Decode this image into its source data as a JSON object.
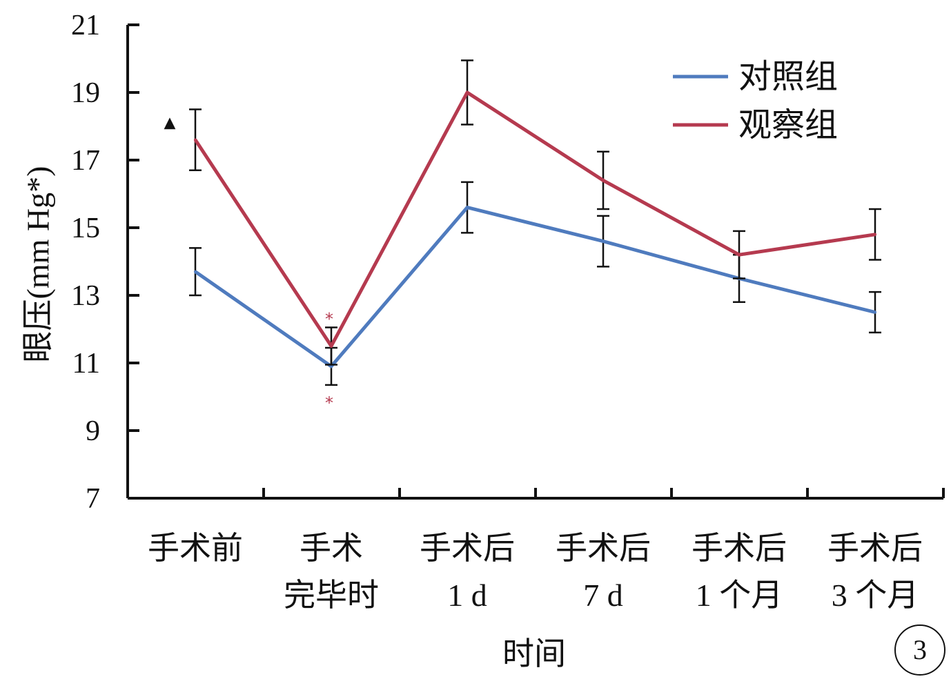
{
  "colors": {
    "control": "#4F7BBE",
    "observation": "#B53A4F",
    "axis": "#111111",
    "annotation_star": "#B53A4F"
  },
  "chart_data": {
    "type": "line",
    "xlabel": "时间",
    "ylabel": "眼压(mm Hg*)",
    "ylim": [
      7,
      21
    ],
    "yticks": [
      "7",
      "9",
      "11",
      "13",
      "15",
      "17",
      "19",
      "21"
    ],
    "categories": [
      {
        "line1": "手术前",
        "line2": ""
      },
      {
        "line1": "手术",
        "line2": "完毕时"
      },
      {
        "line1": "手术后",
        "line2": "1 d"
      },
      {
        "line1": "手术后",
        "line2": "7 d"
      },
      {
        "line1": "手术后",
        "line2": "1 个月"
      },
      {
        "line1": "手术后",
        "line2": "3 个月"
      }
    ],
    "series": [
      {
        "name": "对照组",
        "color_key": "control",
        "values": [
          13.7,
          10.9,
          15.6,
          14.6,
          13.5,
          12.5
        ],
        "errors": [
          0.7,
          0.55,
          0.75,
          0.75,
          0.7,
          0.6
        ]
      },
      {
        "name": "观察组",
        "color_key": "observation",
        "values": [
          17.6,
          11.5,
          19.0,
          16.4,
          14.2,
          14.8
        ],
        "errors": [
          0.9,
          0.55,
          0.95,
          0.85,
          0.7,
          0.75
        ]
      }
    ],
    "legend_position": "top-right",
    "grid": false,
    "annotations": [
      {
        "symbol": "▲",
        "category_index": 0,
        "note": "left of first point"
      },
      {
        "symbol": "*",
        "category_index": 1,
        "position": "above"
      },
      {
        "symbol": "*",
        "category_index": 1,
        "position": "below"
      }
    ],
    "panel_label": "3"
  }
}
